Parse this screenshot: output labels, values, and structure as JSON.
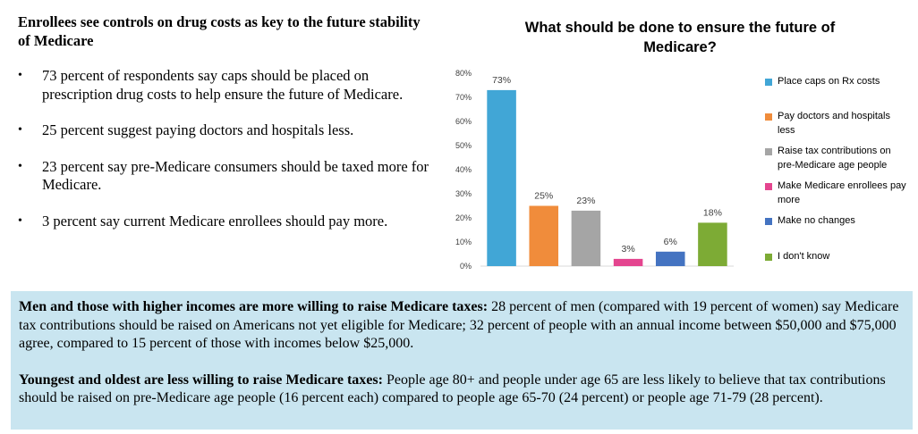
{
  "left": {
    "heading": "Enrollees see controls on drug costs as key to the future stability of Medicare",
    "bullets": [
      "73 percent of respondents say caps should be placed on prescription drug costs to help ensure the future of Medicare.",
      "25 percent suggest paying doctors and hospitals less.",
      "23 percent say pre-Medicare consumers should be taxed more for Medicare.",
      "3 percent say current Medicare enrollees should pay more."
    ],
    "bullet_symbol": "•"
  },
  "chart_data": {
    "type": "bar",
    "title": "What should be done to ensure the future of Medicare?",
    "categories": [
      "Place caps on Rx costs",
      "Pay doctors and hospitals less",
      "Raise tax contributions on pre-Medicare age people",
      "Make Medicare enrollees pay more",
      "Make no changes",
      "I don't know"
    ],
    "values": [
      73,
      25,
      23,
      3,
      6,
      18
    ],
    "data_labels": [
      "73%",
      "25%",
      "23%",
      "3%",
      "6%",
      "18%"
    ],
    "colors": [
      "#41a6d6",
      "#f08c3b",
      "#a5a5a5",
      "#e4458f",
      "#4473c1",
      "#7dab35"
    ],
    "ylim": [
      0,
      80
    ],
    "yticks": [
      "0%",
      "10%",
      "20%",
      "30%",
      "40%",
      "50%",
      "60%",
      "70%",
      "80%"
    ],
    "grid": false,
    "legend_position": "right"
  },
  "bottom": {
    "p1_bold": "Men and those with higher incomes are more willing to raise Medicare taxes:",
    "p1_text": " 28 percent of men (compared with 19 percent of women) say Medicare tax contributions should be raised on Americans not yet eligible for Medicare; 32 percent of people with an annual income between $50,000 and $75,000 agree, compared to 15 percent of those with incomes below $25,000.",
    "p2_bold": "Youngest and oldest are less willing to raise Medicare taxes:",
    "p2_text": "  People age 80+ and people under age 65 are less likely to believe that tax contributions should be raised on pre-Medicare age people (16 percent each) compared to people age 65-70 (24 percent) or people age 71-79 (28 percent)."
  }
}
